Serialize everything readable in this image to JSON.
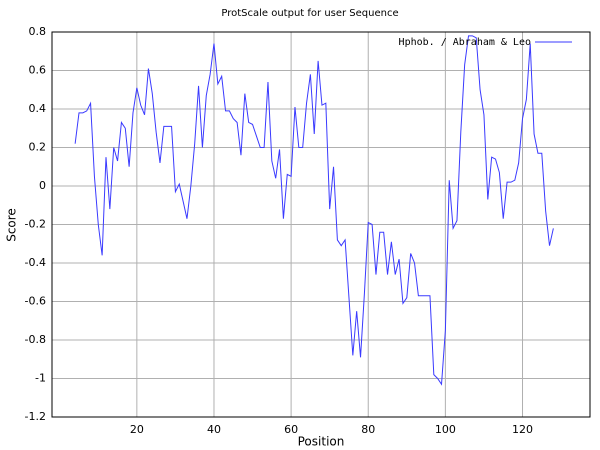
{
  "chart_data": {
    "type": "line",
    "title": "ProtScale output  for user Sequence",
    "xlabel": "Position",
    "ylabel": "Score",
    "x": [
      4,
      5,
      6,
      7,
      8,
      9,
      10,
      11,
      12,
      13,
      14,
      15,
      16,
      17,
      18,
      19,
      20,
      21,
      22,
      23,
      24,
      25,
      26,
      27,
      28,
      29,
      30,
      31,
      32,
      33,
      34,
      35,
      36,
      37,
      38,
      39,
      40,
      41,
      42,
      43,
      44,
      45,
      46,
      47,
      48,
      49,
      50,
      51,
      52,
      53,
      54,
      55,
      56,
      57,
      58,
      59,
      60,
      61,
      62,
      63,
      64,
      65,
      66,
      67,
      68,
      69,
      70,
      71,
      72,
      73,
      74,
      75,
      76,
      77,
      78,
      79,
      80,
      81,
      82,
      83,
      84,
      85,
      86,
      87,
      88,
      89,
      90,
      91,
      92,
      93,
      94,
      95,
      96,
      97,
      98,
      99,
      100,
      101,
      102,
      103,
      104,
      105,
      106,
      107,
      108,
      109,
      110,
      111,
      112,
      113,
      114,
      115,
      116,
      117,
      118,
      119,
      120,
      121,
      122,
      123,
      124,
      125,
      126,
      127,
      128
    ],
    "series": [
      {
        "name": "Hphob. / Abraham & Leo",
        "color": "#3a3aff",
        "values": [
          0.22,
          0.38,
          0.38,
          0.39,
          0.43,
          0.05,
          -0.2,
          -0.36,
          0.15,
          -0.12,
          0.2,
          0.13,
          0.33,
          0.3,
          0.1,
          0.38,
          0.51,
          0.42,
          0.37,
          0.61,
          0.48,
          0.28,
          0.12,
          0.31,
          0.31,
          0.31,
          -0.03,
          0.01,
          -0.08,
          -0.17,
          0.0,
          0.22,
          0.52,
          0.2,
          0.47,
          0.58,
          0.74,
          0.53,
          0.57,
          0.39,
          0.39,
          0.35,
          0.33,
          0.16,
          0.48,
          0.33,
          0.32,
          0.26,
          0.2,
          0.2,
          0.54,
          0.13,
          0.04,
          0.19,
          -0.17,
          0.06,
          0.05,
          0.41,
          0.2,
          0.2,
          0.43,
          0.58,
          0.27,
          0.65,
          0.42,
          0.43,
          -0.12,
          0.1,
          -0.28,
          -0.31,
          -0.28,
          -0.58,
          -0.88,
          -0.65,
          -0.89,
          -0.56,
          -0.19,
          -0.2,
          -0.46,
          -0.24,
          -0.24,
          -0.46,
          -0.29,
          -0.46,
          -0.38,
          -0.61,
          -0.58,
          -0.35,
          -0.4,
          -0.57,
          -0.57,
          -0.57,
          -0.57,
          -0.98,
          -1.0,
          -1.03,
          -0.75,
          0.03,
          -0.22,
          -0.18,
          0.28,
          0.63,
          0.78,
          0.78,
          0.77,
          0.5,
          0.37,
          -0.07,
          0.15,
          0.14,
          0.07,
          -0.17,
          0.02,
          0.02,
          0.03,
          0.12,
          0.35,
          0.45,
          0.74,
          0.27,
          0.17,
          0.17,
          -0.13,
          -0.31,
          -0.22
        ]
      }
    ],
    "xlim": [
      -2,
      137.5
    ],
    "xticks": [
      20,
      40,
      60,
      80,
      100,
      120
    ],
    "ylim": [
      -1.2,
      0.8
    ],
    "yticks": [
      0.8,
      0.6,
      0.4,
      0.2,
      0,
      -0.2,
      -0.4,
      -0.6,
      -0.8,
      -1,
      -1.2
    ],
    "grid": true,
    "legend": "upper right"
  }
}
